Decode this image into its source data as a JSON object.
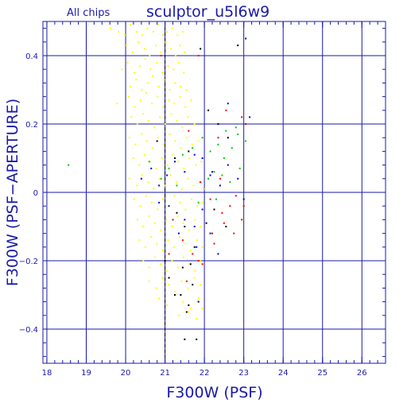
{
  "chart_data": {
    "type": "scatter",
    "title": "sculptor_u5l6w9",
    "subtitle": "All chips",
    "xlabel": "F300W (PSF)",
    "ylabel": "F300W (PSF−APERTURE)",
    "xlim": [
      17.9,
      26.6
    ],
    "ylim": [
      -0.5,
      0.5
    ],
    "x_ticks": [
      18,
      19,
      20,
      21,
      22,
      23,
      24,
      25,
      26
    ],
    "y_ticks": [
      -0.4,
      -0.2,
      0,
      0.2,
      0.4
    ],
    "x_tick_labels": [
      "18",
      "19",
      "20",
      "21",
      "22",
      "23",
      "24",
      "25",
      "26"
    ],
    "y_tick_labels": [
      "−0.4",
      "−0.2",
      "0",
      "0.2",
      "0.4"
    ],
    "grid": true,
    "dashed_vertical_x": 21.0,
    "colors": {
      "axis": "#1a1aa8",
      "grid": "#1a1aa8",
      "background": "#ffffff"
    },
    "series": [
      {
        "color": "#ffff00",
        "points": [
          [
            19.62,
            0.48
          ],
          [
            19.82,
            0.47
          ],
          [
            19.98,
            0.46
          ],
          [
            20.12,
            0.49
          ],
          [
            20.28,
            0.47
          ],
          [
            20.42,
            0.46
          ],
          [
            20.55,
            0.48
          ],
          [
            20.7,
            0.47
          ],
          [
            20.82,
            0.49
          ],
          [
            20.95,
            0.46
          ],
          [
            21.05,
            0.47
          ],
          [
            21.18,
            0.48
          ],
          [
            21.32,
            0.46
          ],
          [
            21.45,
            0.47
          ],
          [
            20.02,
            0.43
          ],
          [
            20.18,
            0.41
          ],
          [
            20.32,
            0.44
          ],
          [
            20.48,
            0.42
          ],
          [
            20.61,
            0.4
          ],
          [
            20.77,
            0.43
          ],
          [
            20.9,
            0.41
          ],
          [
            21.02,
            0.44
          ],
          [
            21.14,
            0.42
          ],
          [
            21.27,
            0.4
          ],
          [
            21.38,
            0.43
          ],
          [
            21.5,
            0.41
          ],
          [
            19.9,
            0.36
          ],
          [
            20.05,
            0.38
          ],
          [
            20.22,
            0.35
          ],
          [
            20.36,
            0.37
          ],
          [
            20.5,
            0.39
          ],
          [
            20.63,
            0.36
          ],
          [
            20.79,
            0.38
          ],
          [
            20.93,
            0.35
          ],
          [
            21.08,
            0.37
          ],
          [
            21.22,
            0.36
          ],
          [
            21.35,
            0.38
          ],
          [
            21.48,
            0.35
          ],
          [
            20.12,
            0.31
          ],
          [
            20.27,
            0.33
          ],
          [
            20.41,
            0.3
          ],
          [
            20.56,
            0.32
          ],
          [
            20.69,
            0.34
          ],
          [
            20.84,
            0.31
          ],
          [
            20.98,
            0.33
          ],
          [
            21.12,
            0.3
          ],
          [
            21.26,
            0.32
          ],
          [
            21.4,
            0.31
          ],
          [
            21.55,
            0.3
          ],
          [
            19.78,
            0.26
          ],
          [
            20.08,
            0.28
          ],
          [
            20.23,
            0.25
          ],
          [
            20.38,
            0.27
          ],
          [
            20.52,
            0.29
          ],
          [
            20.67,
            0.26
          ],
          [
            20.81,
            0.28
          ],
          [
            20.96,
            0.25
          ],
          [
            21.1,
            0.27
          ],
          [
            21.24,
            0.26
          ],
          [
            21.38,
            0.28
          ],
          [
            21.52,
            0.25
          ],
          [
            21.66,
            0.27
          ],
          [
            20.15,
            0.22
          ],
          [
            20.3,
            0.2
          ],
          [
            20.45,
            0.23
          ],
          [
            20.58,
            0.21
          ],
          [
            20.73,
            0.19
          ],
          [
            20.87,
            0.22
          ],
          [
            21.01,
            0.2
          ],
          [
            21.16,
            0.23
          ],
          [
            21.3,
            0.21
          ],
          [
            21.44,
            0.19
          ],
          [
            21.58,
            0.22
          ],
          [
            21.75,
            0.2
          ],
          [
            20.1,
            0.16
          ],
          [
            20.25,
            0.14
          ],
          [
            20.4,
            0.17
          ],
          [
            20.53,
            0.15
          ],
          [
            20.68,
            0.13
          ],
          [
            20.82,
            0.16
          ],
          [
            20.97,
            0.14
          ],
          [
            21.12,
            0.17
          ],
          [
            21.26,
            0.15
          ],
          [
            21.4,
            0.13
          ],
          [
            21.55,
            0.16
          ],
          [
            21.7,
            0.14
          ],
          [
            21.85,
            0.15
          ],
          [
            20.2,
            0.1
          ],
          [
            20.35,
            0.08
          ],
          [
            20.48,
            0.11
          ],
          [
            20.62,
            0.09
          ],
          [
            20.77,
            0.07
          ],
          [
            20.92,
            0.1
          ],
          [
            21.06,
            0.08
          ],
          [
            21.2,
            0.11
          ],
          [
            21.34,
            0.09
          ],
          [
            21.48,
            0.07
          ],
          [
            21.62,
            0.1
          ],
          [
            21.78,
            0.08
          ],
          [
            21.92,
            0.09
          ],
          [
            20.1,
            0.04
          ],
          [
            20.28,
            0.02
          ],
          [
            20.42,
            0.05
          ],
          [
            20.57,
            0.03
          ],
          [
            20.71,
            0.01
          ],
          [
            20.86,
            0.04
          ],
          [
            21.0,
            0.02
          ],
          [
            21.14,
            0.05
          ],
          [
            21.29,
            0.03
          ],
          [
            21.43,
            0.01
          ],
          [
            21.58,
            0.04
          ],
          [
            21.72,
            0.02
          ],
          [
            21.88,
            0.03
          ],
          [
            22.02,
            0.01
          ],
          [
            20.22,
            -0.02
          ],
          [
            20.37,
            -0.04
          ],
          [
            20.52,
            -0.01
          ],
          [
            20.66,
            -0.03
          ],
          [
            20.81,
            -0.05
          ],
          [
            20.95,
            -0.02
          ],
          [
            21.09,
            -0.04
          ],
          [
            21.24,
            -0.01
          ],
          [
            21.38,
            -0.03
          ],
          [
            21.52,
            -0.05
          ],
          [
            21.67,
            -0.02
          ],
          [
            21.82,
            -0.04
          ],
          [
            21.96,
            -0.03
          ],
          [
            20.3,
            -0.08
          ],
          [
            20.45,
            -0.1
          ],
          [
            20.6,
            -0.07
          ],
          [
            20.74,
            -0.09
          ],
          [
            20.89,
            -0.11
          ],
          [
            21.03,
            -0.08
          ],
          [
            21.18,
            -0.1
          ],
          [
            21.32,
            -0.07
          ],
          [
            21.46,
            -0.09
          ],
          [
            21.61,
            -0.11
          ],
          [
            21.76,
            -0.08
          ],
          [
            21.9,
            -0.1
          ],
          [
            20.35,
            -0.14
          ],
          [
            20.5,
            -0.16
          ],
          [
            20.65,
            -0.13
          ],
          [
            20.79,
            -0.15
          ],
          [
            20.94,
            -0.17
          ],
          [
            21.08,
            -0.14
          ],
          [
            21.23,
            -0.16
          ],
          [
            21.37,
            -0.13
          ],
          [
            21.52,
            -0.15
          ],
          [
            21.66,
            -0.17
          ],
          [
            21.81,
            -0.14
          ],
          [
            21.95,
            -0.16
          ],
          [
            20.45,
            -0.2
          ],
          [
            20.6,
            -0.22
          ],
          [
            20.75,
            -0.19
          ],
          [
            20.89,
            -0.21
          ],
          [
            21.04,
            -0.23
          ],
          [
            21.18,
            -0.2
          ],
          [
            21.33,
            -0.22
          ],
          [
            21.47,
            -0.19
          ],
          [
            21.62,
            -0.21
          ],
          [
            21.76,
            -0.23
          ],
          [
            21.9,
            -0.2
          ],
          [
            20.6,
            -0.26
          ],
          [
            20.78,
            -0.28
          ],
          [
            20.93,
            -0.25
          ],
          [
            21.1,
            -0.27
          ],
          [
            21.26,
            -0.29
          ],
          [
            21.42,
            -0.26
          ],
          [
            21.58,
            -0.28
          ],
          [
            21.74,
            -0.25
          ],
          [
            21.9,
            -0.27
          ],
          [
            20.85,
            -0.31
          ],
          [
            21.05,
            -0.33
          ],
          [
            21.25,
            -0.3
          ],
          [
            21.45,
            -0.32
          ],
          [
            21.65,
            -0.34
          ],
          [
            21.85,
            -0.31
          ],
          [
            21.35,
            -0.36
          ],
          [
            21.6,
            -0.35
          ],
          [
            21.8,
            -0.37
          ],
          [
            21.95,
            -0.34
          ]
        ]
      },
      {
        "color": "#00cc00",
        "points": [
          [
            18.55,
            0.08
          ],
          [
            20.6,
            0.09
          ],
          [
            20.9,
            0.04
          ],
          [
            21.1,
            0.07
          ],
          [
            21.45,
            0.11
          ],
          [
            21.7,
            0.13
          ],
          [
            21.95,
            0.16
          ],
          [
            22.15,
            0.12
          ],
          [
            22.35,
            0.14
          ],
          [
            22.5,
            0.1
          ],
          [
            22.7,
            0.13
          ],
          [
            22.85,
            0.17
          ],
          [
            23.05,
            0.15
          ],
          [
            22.25,
            0.06
          ],
          [
            22.45,
            0.05
          ],
          [
            22.65,
            0.03
          ],
          [
            22.9,
            0.07
          ],
          [
            22.55,
            0.18
          ],
          [
            22.8,
            0.19
          ],
          [
            21.3,
            0.02
          ],
          [
            21.85,
            -0.03
          ],
          [
            22.1,
            0.04
          ],
          [
            22.3,
            -0.02
          ]
        ]
      },
      {
        "color": "#0000e0",
        "points": [
          [
            20.4,
            0.04
          ],
          [
            20.65,
            0.07
          ],
          [
            20.85,
            0.02
          ],
          [
            21.05,
            0.05
          ],
          [
            21.25,
            0.09
          ],
          [
            21.5,
            0.06
          ],
          [
            21.75,
            0.11
          ],
          [
            21.95,
            0.1
          ],
          [
            22.15,
            0.05
          ],
          [
            22.4,
            0.02
          ],
          [
            22.6,
            0.08
          ],
          [
            22.85,
            0.04
          ],
          [
            23.0,
            -0.02
          ],
          [
            23.15,
            0.22
          ],
          [
            23.05,
            0.45
          ],
          [
            22.6,
            0.26
          ],
          [
            22.2,
            0.06
          ],
          [
            21.5,
            -0.08
          ],
          [
            21.75,
            -0.1
          ],
          [
            21.95,
            -0.05
          ],
          [
            22.15,
            -0.12
          ],
          [
            22.35,
            -0.18
          ],
          [
            21.8,
            -0.16
          ],
          [
            21.35,
            -0.12
          ],
          [
            21.1,
            -0.04
          ],
          [
            20.85,
            -0.03
          ]
        ]
      },
      {
        "color": "#ff0000",
        "points": [
          [
            20.9,
            0.4
          ],
          [
            21.85,
            0.4
          ],
          [
            22.55,
            0.24
          ],
          [
            22.95,
            0.22
          ],
          [
            23.05,
            0.2
          ],
          [
            22.35,
            0.16
          ],
          [
            21.6,
            0.18
          ],
          [
            21.9,
            0.03
          ],
          [
            22.15,
            -0.02
          ],
          [
            22.45,
            -0.06
          ],
          [
            22.8,
            -0.01
          ],
          [
            22.95,
            -0.08
          ],
          [
            21.2,
            -0.08
          ],
          [
            21.45,
            -0.14
          ],
          [
            21.7,
            -0.18
          ],
          [
            21.95,
            -0.21
          ],
          [
            22.25,
            -0.15
          ],
          [
            22.5,
            -0.09
          ],
          [
            22.75,
            -0.12
          ],
          [
            21.55,
            -0.26
          ],
          [
            21.85,
            -0.2
          ],
          [
            22.2,
            -0.12
          ],
          [
            22.65,
            -0.04
          ],
          [
            22.4,
            0.04
          ],
          [
            23.0,
            -0.04
          ],
          [
            21.1,
            -0.18
          ]
        ]
      },
      {
        "color": "#000000",
        "points": [
          [
            20.8,
            0.15
          ],
          [
            21.25,
            0.1
          ],
          [
            21.6,
            0.12
          ],
          [
            21.9,
            0.42
          ],
          [
            22.1,
            0.24
          ],
          [
            22.35,
            0.2
          ],
          [
            22.6,
            0.16
          ],
          [
            22.85,
            0.43
          ],
          [
            21.0,
            -0.2
          ],
          [
            21.3,
            -0.06
          ],
          [
            21.5,
            -0.1
          ],
          [
            21.75,
            -0.16
          ],
          [
            21.85,
            -0.32
          ],
          [
            21.4,
            -0.3
          ],
          [
            21.6,
            -0.33
          ],
          [
            21.5,
            -0.43
          ],
          [
            21.8,
            -0.43
          ],
          [
            21.25,
            -0.3
          ],
          [
            21.1,
            -0.25
          ],
          [
            21.65,
            -0.21
          ],
          [
            22.05,
            -0.09
          ],
          [
            22.25,
            -0.05
          ],
          [
            22.55,
            -0.1
          ],
          [
            21.45,
            -0.22
          ],
          [
            21.7,
            -0.27
          ],
          [
            21.55,
            -0.35
          ]
        ]
      }
    ]
  }
}
